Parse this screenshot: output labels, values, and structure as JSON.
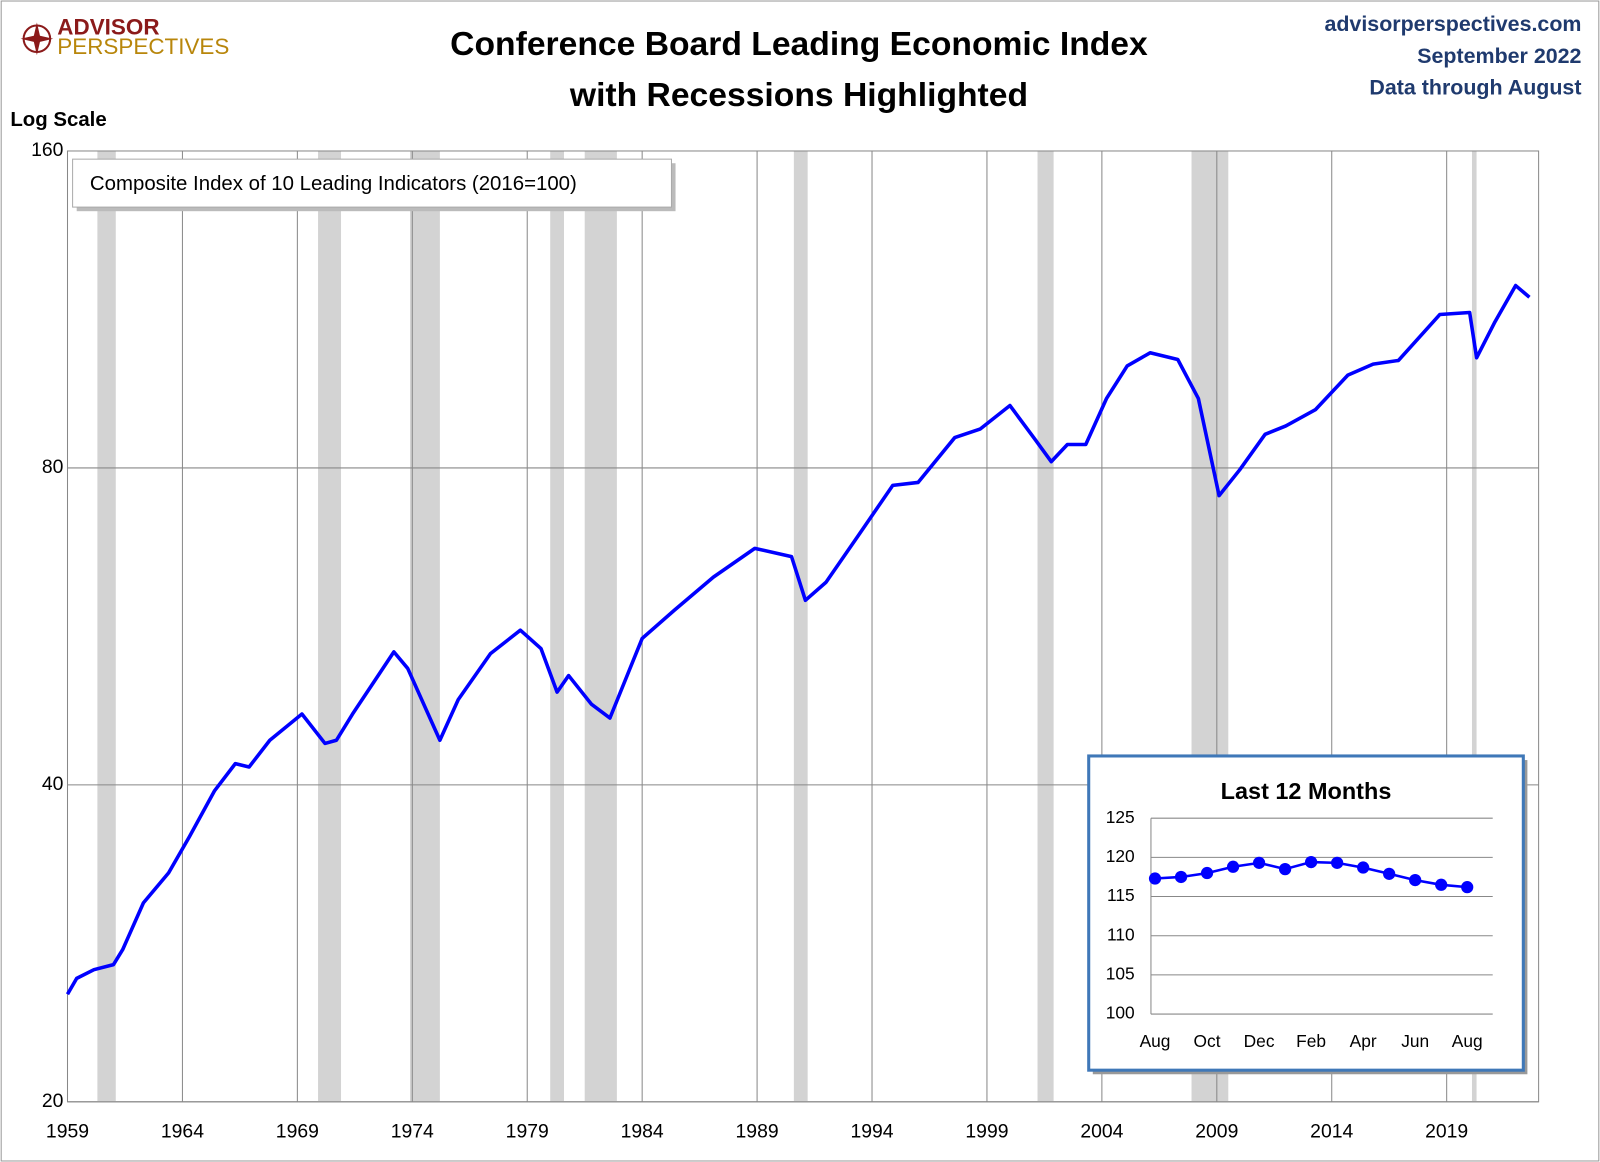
{
  "logo": {
    "line1": "ADVISOR",
    "line2": "PERSPECTIVES"
  },
  "source": {
    "site": "advisorperspectives.com",
    "date": "September 2022",
    "note": "Data through August"
  },
  "chart_data": [
    {
      "type": "line",
      "title": [
        "Conference Board Leading Economic Index",
        "with Recessions Highlighted"
      ],
      "y_label": "Log Scale",
      "log_scale": true,
      "grid": true,
      "xlim": [
        1959,
        2023
      ],
      "xticks": [
        1959,
        1964,
        1969,
        1974,
        1979,
        1984,
        1989,
        1994,
        1999,
        2004,
        2009,
        2014,
        2019
      ],
      "ylim": [
        20,
        160
      ],
      "yticks": [
        20,
        40,
        80,
        160
      ],
      "recessions": [
        [
          1960.3,
          1961.1
        ],
        [
          1969.9,
          1970.9
        ],
        [
          1973.9,
          1975.2
        ],
        [
          1980.0,
          1980.6
        ],
        [
          1981.5,
          1982.9
        ],
        [
          1990.6,
          1991.2
        ],
        [
          2001.2,
          2001.9
        ],
        [
          2007.9,
          2009.5
        ],
        [
          2020.1,
          2020.3
        ]
      ],
      "recession_color": "#d3d3d3",
      "x": [
        1959.0,
        1959.4,
        1960.15,
        1961.0,
        1961.4,
        1962.3,
        1963.4,
        1964.3,
        1965.4,
        1966.3,
        1966.9,
        1967.8,
        1969.2,
        1970.2,
        1970.7,
        1971.4,
        1973.2,
        1973.8,
        1975.2,
        1976.0,
        1977.4,
        1978.7,
        1979.6,
        1980.3,
        1980.8,
        1981.8,
        1982.6,
        1983.2,
        1984.0,
        1985.4,
        1987.1,
        1988.9,
        1990.5,
        1991.1,
        1992.0,
        1993.4,
        1994.9,
        1996.0,
        1997.6,
        1998.7,
        2000.0,
        2001.1,
        2001.8,
        2002.5,
        2003.3,
        2004.2,
        2005.1,
        2006.1,
        2007.3,
        2008.2,
        2009.1,
        2010.0,
        2011.1,
        2012.0,
        2013.3,
        2014.7,
        2015.8,
        2016.9,
        2018.7,
        2020.0,
        2020.3,
        2021.1,
        2022.0,
        2022.6
      ],
      "series": [
        {
          "name": "Composite Index of 10 Leading Indicators (2016=100)",
          "color": "#0000ff",
          "values": [
            25.3,
            26.2,
            26.7,
            27.0,
            27.9,
            30.9,
            33.0,
            35.7,
            39.5,
            41.9,
            41.6,
            44.1,
            46.7,
            43.8,
            44.1,
            46.7,
            53.5,
            51.6,
            44.1,
            48.2,
            53.3,
            56.1,
            53.9,
            49.0,
            50.8,
            47.7,
            46.3,
            49.9,
            55.1,
            58.6,
            63.0,
            67.1,
            65.9,
            59.9,
            62.3,
            69.0,
            77.0,
            77.5,
            85.5,
            87.1,
            91.7,
            85.1,
            81.1,
            84.2,
            84.2,
            93.1,
            100.0,
            102.9,
            101.4,
            93.1,
            75.3,
            79.7,
            86.1,
            87.7,
            90.9,
            98.0,
            100.4,
            101.2,
            111.9,
            112.4,
            101.8,
            110.1,
            119.2,
            116.2
          ]
        }
      ]
    },
    {
      "type": "line",
      "title": "Last 12 Months",
      "grid": true,
      "color": "#0000ff",
      "categories": [
        "Aug",
        null,
        "Oct",
        null,
        "Dec",
        null,
        "Feb",
        null,
        "Apr",
        null,
        "Jun",
        null,
        "Aug"
      ],
      "values": [
        117.3,
        117.5,
        118.0,
        118.8,
        119.3,
        118.5,
        119.4,
        119.3,
        118.7,
        117.9,
        117.1,
        116.5,
        116.2
      ],
      "ylim": [
        100,
        125
      ],
      "yticks": [
        100,
        105,
        110,
        115,
        120,
        125
      ]
    }
  ]
}
